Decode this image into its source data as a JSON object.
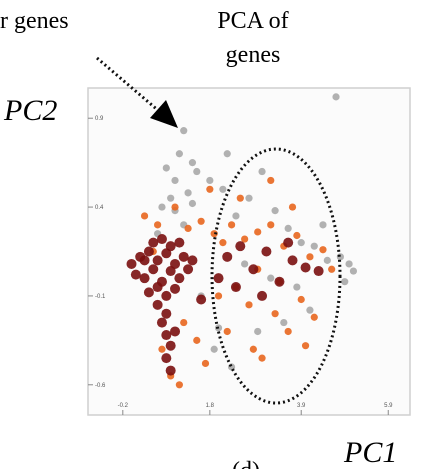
{
  "chart_data": {
    "type": "scatter",
    "annotations": [
      "r genes",
      "PCA of",
      "genes"
    ],
    "xlabel": "PC1",
    "ylabel": "PC2",
    "caption": "(d)",
    "xlim": [
      -1.0,
      6.4
    ],
    "ylim": [
      -0.77,
      1.07
    ],
    "xticks": [
      -0.2,
      1.8,
      3.9,
      5.9
    ],
    "yticks": [
      0.9,
      0.4,
      -0.1,
      -0.6
    ],
    "series": [
      {
        "color": "#a9a9a9",
        "x": [
          1.2,
          4.7,
          0.8,
          1.0,
          1.1,
          0.9,
          1.3,
          1.5,
          0.7,
          1.0,
          1.2,
          1.4,
          1.8,
          2.1,
          2.4,
          2.7,
          3.0,
          3.3,
          3.6,
          3.9,
          4.2,
          4.5,
          4.8,
          5.0,
          5.1,
          4.9,
          2.6,
          3.2,
          3.8,
          1.6,
          2.0,
          2.9,
          3.5,
          4.1,
          1.9,
          2.3,
          4.4,
          1.4,
          2.2,
          0.6
        ],
        "y": [
          0.83,
          1.02,
          0.62,
          0.55,
          0.7,
          0.45,
          0.48,
          0.6,
          0.4,
          0.38,
          0.3,
          0.42,
          0.55,
          0.5,
          0.35,
          0.45,
          0.6,
          0.38,
          0.28,
          0.2,
          0.18,
          0.1,
          0.12,
          0.08,
          0.04,
          -0.02,
          0.08,
          0.0,
          -0.05,
          -0.1,
          -0.28,
          -0.3,
          -0.25,
          -0.18,
          -0.4,
          -0.5,
          0.3,
          0.65,
          0.7,
          0.25
        ]
      },
      {
        "color": "#e8661e",
        "x": [
          0.3,
          0.6,
          1.0,
          1.3,
          1.6,
          1.9,
          2.1,
          2.3,
          2.6,
          2.9,
          3.2,
          3.5,
          3.8,
          4.1,
          4.4,
          2.0,
          2.7,
          3.3,
          3.9,
          4.6,
          1.2,
          1.5,
          2.2,
          2.8,
          3.0,
          3.6,
          4.2,
          1.8,
          2.5,
          3.2,
          0.9,
          1.1,
          0.5,
          2.4,
          3.4,
          1.7,
          2.9,
          4.0,
          0.7,
          3.7
        ],
        "y": [
          0.35,
          0.3,
          0.4,
          0.28,
          0.32,
          0.25,
          0.2,
          0.3,
          0.22,
          0.26,
          0.3,
          0.18,
          0.24,
          0.12,
          0.16,
          -0.1,
          -0.15,
          -0.2,
          -0.12,
          0.05,
          -0.25,
          -0.35,
          -0.3,
          -0.4,
          -0.45,
          -0.3,
          -0.22,
          0.5,
          0.45,
          0.55,
          -0.55,
          -0.6,
          0.15,
          -0.05,
          -0.02,
          -0.48,
          0.05,
          -0.38,
          -0.4,
          0.4
        ]
      },
      {
        "color": "#7a1010",
        "x": [
          0.0,
          0.2,
          0.3,
          0.4,
          0.5,
          0.6,
          0.7,
          0.8,
          0.9,
          1.0,
          1.1,
          1.2,
          1.3,
          0.4,
          0.6,
          0.8,
          1.0,
          0.5,
          0.7,
          0.9,
          1.1,
          0.3,
          0.6,
          0.8,
          0.7,
          0.8,
          0.9,
          0.8,
          1.0,
          0.9,
          1.4,
          2.2,
          2.5,
          2.8,
          3.1,
          3.4,
          3.7,
          4.0,
          2.4,
          3.0,
          3.6,
          2.0,
          4.3,
          1.6,
          0.1
        ],
        "y": [
          0.08,
          0.12,
          0.0,
          0.15,
          0.05,
          0.1,
          -0.02,
          0.14,
          0.04,
          0.08,
          0.0,
          0.12,
          0.05,
          -0.08,
          -0.05,
          -0.1,
          -0.06,
          0.2,
          0.22,
          0.18,
          0.2,
          0.1,
          -0.15,
          -0.2,
          -0.25,
          -0.32,
          -0.38,
          -0.45,
          -0.3,
          -0.52,
          0.1,
          0.12,
          0.18,
          0.05,
          0.15,
          -0.02,
          0.1,
          0.06,
          -0.05,
          -0.1,
          0.2,
          0.0,
          0.04,
          -0.12,
          0.02
        ]
      }
    ]
  }
}
